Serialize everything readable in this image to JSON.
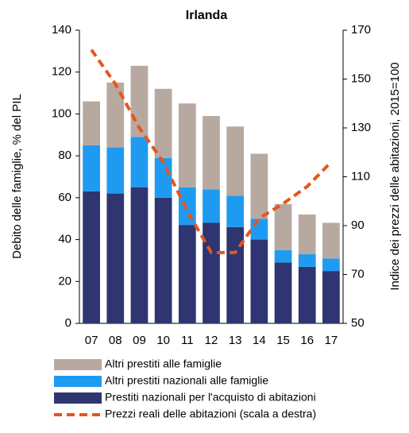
{
  "chart_data": {
    "type": "bar",
    "title": "Irlanda",
    "ylabel": "Debito delle famiglie, % del PIL",
    "y2label": "Indice dei prezzi delle abitazioni, 2015=100",
    "categories": [
      "07",
      "08",
      "09",
      "10",
      "11",
      "12",
      "13",
      "14",
      "15",
      "16",
      "17"
    ],
    "stacked": true,
    "series": [
      {
        "name": "Altri prestiti alle famiglie",
        "type": "bar",
        "color": "#b8a9a0",
        "values": [
          21,
          31,
          34,
          33,
          40,
          35,
          33,
          31,
          22,
          19,
          17
        ]
      },
      {
        "name": "Altri prestiti nazionali alle famiglie",
        "type": "bar",
        "color": "#1e9bf0",
        "values": [
          22,
          22,
          24,
          19,
          18,
          16,
          15,
          10,
          6,
          6,
          6
        ]
      },
      {
        "name": "Prestiti nazionali per l'acquisto di abitazioni",
        "type": "bar",
        "color": "#2e3570",
        "values": [
          63,
          62,
          65,
          60,
          47,
          48,
          46,
          40,
          29,
          27,
          25
        ]
      },
      {
        "name": "Prezzi reali delle abitazioni (scala a destra)",
        "type": "line",
        "axis": "y2",
        "color": "#e8541e",
        "dashed": true,
        "values": [
          162,
          148,
          130,
          116,
          96,
          79,
          79,
          93,
          99,
          106,
          116
        ]
      }
    ],
    "ylim": [
      0,
      140
    ],
    "yticks": [
      0,
      20,
      40,
      60,
      80,
      100,
      120,
      140
    ],
    "y2lim": [
      50,
      170
    ],
    "y2ticks": [
      50,
      70,
      90,
      110,
      130,
      150,
      170
    ]
  }
}
